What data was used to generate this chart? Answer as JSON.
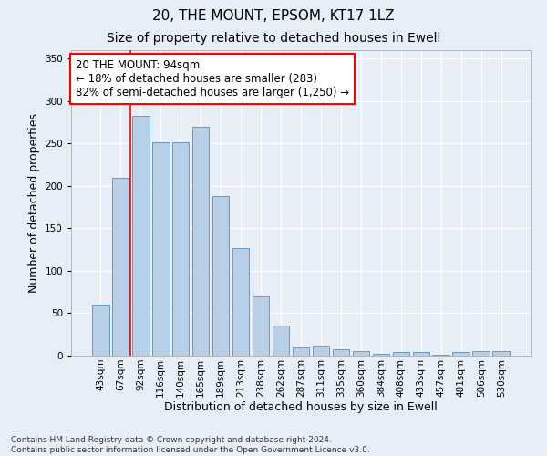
{
  "title": "20, THE MOUNT, EPSOM, KT17 1LZ",
  "subtitle": "Size of property relative to detached houses in Ewell",
  "xlabel": "Distribution of detached houses by size in Ewell",
  "ylabel": "Number of detached properties",
  "categories": [
    "43sqm",
    "67sqm",
    "92sqm",
    "116sqm",
    "140sqm",
    "165sqm",
    "189sqm",
    "213sqm",
    "238sqm",
    "262sqm",
    "287sqm",
    "311sqm",
    "335sqm",
    "360sqm",
    "384sqm",
    "408sqm",
    "433sqm",
    "457sqm",
    "481sqm",
    "506sqm",
    "530sqm"
  ],
  "values": [
    60,
    210,
    283,
    252,
    252,
    270,
    188,
    127,
    70,
    35,
    10,
    12,
    7,
    5,
    2,
    4,
    4,
    1,
    4,
    5,
    5
  ],
  "bar_color": "#b8cfe8",
  "bar_edge_color": "#6699cc",
  "background_color": "#e8eef8",
  "grid_color": "#ffffff",
  "vline_x": 1.5,
  "vline_color": "red",
  "annotation_line1": "20 THE MOUNT: 94sqm",
  "annotation_line2": "← 18% of detached houses are smaller (283)",
  "annotation_line3": "82% of semi-detached houses are larger (1,250) →",
  "annotation_box_color": "white",
  "annotation_box_edge_color": "red",
  "ylim": [
    0,
    360
  ],
  "yticks": [
    0,
    50,
    100,
    150,
    200,
    250,
    300,
    350
  ],
  "footer_text": "Contains HM Land Registry data © Crown copyright and database right 2024.\nContains public sector information licensed under the Open Government Licence v3.0.",
  "title_fontsize": 11,
  "subtitle_fontsize": 10,
  "xlabel_fontsize": 9,
  "ylabel_fontsize": 9,
  "tick_fontsize": 7.5,
  "annotation_fontsize": 8.5,
  "footer_fontsize": 6.5
}
